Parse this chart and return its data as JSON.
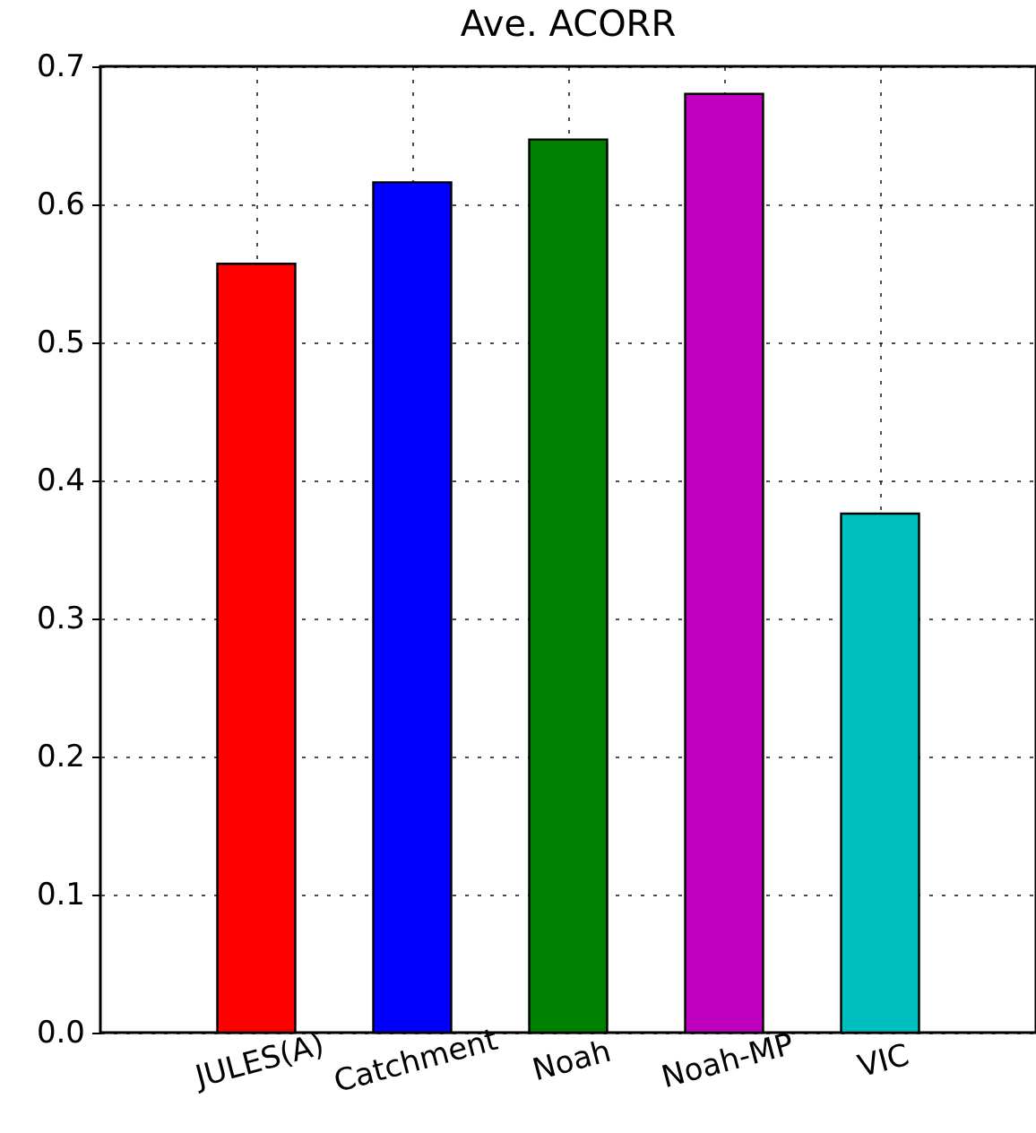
{
  "chart_data": {
    "type": "bar",
    "title": "Ave. ACORR",
    "categories": [
      "JULES(A)",
      "Catchment",
      "Noah",
      "Noah-MP",
      "VIC"
    ],
    "values": [
      0.557,
      0.616,
      0.647,
      0.68,
      0.376
    ],
    "colors": [
      "#ff0000",
      "#0000ff",
      "#008000",
      "#bf00bf",
      "#00bfbf"
    ],
    "ylim": [
      0,
      0.7
    ],
    "yticks": [
      {
        "value": 0,
        "label": "0.0"
      },
      {
        "value": 0.1,
        "label": "0.1"
      },
      {
        "value": 0.2,
        "label": "0.2"
      },
      {
        "value": 0.3,
        "label": "0.3"
      },
      {
        "value": 0.4,
        "label": "0.4"
      },
      {
        "value": 0.5,
        "label": "0.5"
      },
      {
        "value": 0.6,
        "label": "0.6"
      },
      {
        "value": 0.7,
        "label": "0.7"
      }
    ],
    "grid": true
  }
}
